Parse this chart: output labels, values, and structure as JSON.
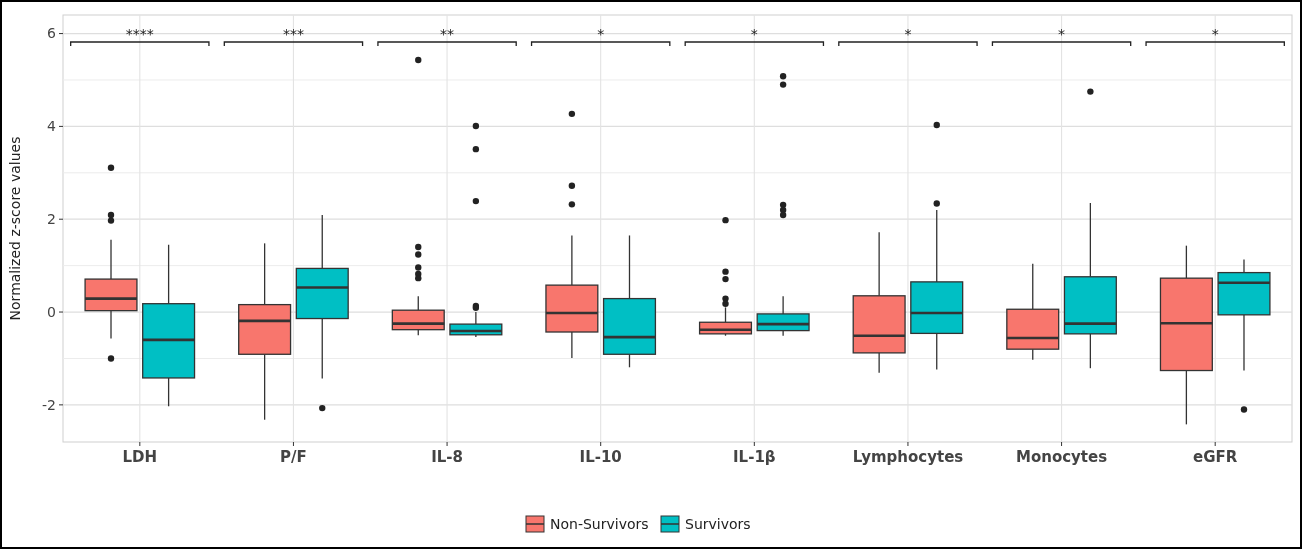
{
  "chart_data": {
    "type": "box",
    "ylabel": "Normalized z-score values",
    "categories": [
      "LDH",
      "P/F",
      "IL-8",
      "IL-10",
      "IL-1β",
      "Lymphocytes",
      "Monocytes",
      "eGFR"
    ],
    "ylim": [
      -2.8,
      6.4
    ],
    "yticks": [
      -2,
      {
        "value": -1,
        "label": null
      },
      0,
      {
        "value": 1,
        "label": null
      },
      2,
      {
        "value": 3,
        "label": null
      },
      4,
      {
        "value": 5,
        "label": null
      },
      6
    ],
    "grid": true,
    "legend": "bottom",
    "series": [
      {
        "name": "Non-Survivors",
        "color": "#f8766d",
        "boxes": [
          {
            "low": -0.57,
            "q1": 0.03,
            "median": 0.29,
            "q3": 0.71,
            "high": 1.56,
            "outliers": [
              3.11,
              2.09,
              1.97,
              -1.0
            ]
          },
          {
            "low": -2.32,
            "q1": -0.91,
            "median": -0.19,
            "q3": 0.16,
            "high": 1.48
          },
          {
            "low": -0.5,
            "q1": -0.38,
            "median": -0.25,
            "q3": 0.04,
            "high": 0.34,
            "outliers": [
              5.43,
              1.4,
              1.24,
              0.96,
              0.82,
              0.73
            ]
          },
          {
            "low": -0.99,
            "q1": -0.43,
            "median": -0.02,
            "q3": 0.58,
            "high": 1.65,
            "outliers": [
              4.27,
              2.72,
              2.32
            ]
          },
          {
            "low": -0.51,
            "q1": -0.47,
            "median": -0.38,
            "q3": -0.22,
            "high": 0.1,
            "outliers": [
              1.98,
              0.87,
              0.71,
              0.29,
              0.18
            ]
          },
          {
            "low": -1.31,
            "q1": -0.88,
            "median": -0.51,
            "q3": 0.35,
            "high": 1.72
          },
          {
            "low": -1.03,
            "q1": -0.8,
            "median": -0.56,
            "q3": 0.06,
            "high": 1.04
          },
          {
            "low": -2.42,
            "q1": -1.26,
            "median": -0.24,
            "q3": 0.73,
            "high": 1.43
          }
        ]
      },
      {
        "name": "Survivors",
        "color": "#00bfc4",
        "boxes": [
          {
            "low": -2.03,
            "q1": -1.42,
            "median": -0.6,
            "q3": 0.18,
            "high": 1.45
          },
          {
            "low": -1.43,
            "q1": -0.14,
            "median": 0.53,
            "q3": 0.94,
            "high": 2.09,
            "outliers": [
              -2.07
            ]
          },
          {
            "low": -0.54,
            "q1": -0.49,
            "median": -0.41,
            "q3": -0.26,
            "high": 0.0,
            "outliers": [
              4.01,
              3.51,
              2.39,
              0.13,
              0.09
            ]
          },
          {
            "low": -1.19,
            "q1": -0.91,
            "median": -0.54,
            "q3": 0.29,
            "high": 1.65
          },
          {
            "low": -0.51,
            "q1": -0.4,
            "median": -0.26,
            "q3": -0.04,
            "high": 0.34,
            "outliers": [
              5.08,
              4.9,
              2.31,
              2.2,
              2.09
            ]
          },
          {
            "low": -1.24,
            "q1": -0.46,
            "median": -0.02,
            "q3": 0.65,
            "high": 2.2,
            "outliers": [
              4.03,
              2.34
            ]
          },
          {
            "low": -1.21,
            "q1": -0.47,
            "median": -0.25,
            "q3": 0.76,
            "high": 2.35,
            "outliers": [
              4.75
            ]
          },
          {
            "low": -1.26,
            "q1": -0.06,
            "median": 0.63,
            "q3": 0.85,
            "high": 1.13,
            "outliers": [
              -2.1
            ]
          }
        ]
      }
    ],
    "annotations": [
      "****",
      "***",
      "**",
      "*",
      "*",
      "*",
      "*",
      "*"
    ]
  }
}
